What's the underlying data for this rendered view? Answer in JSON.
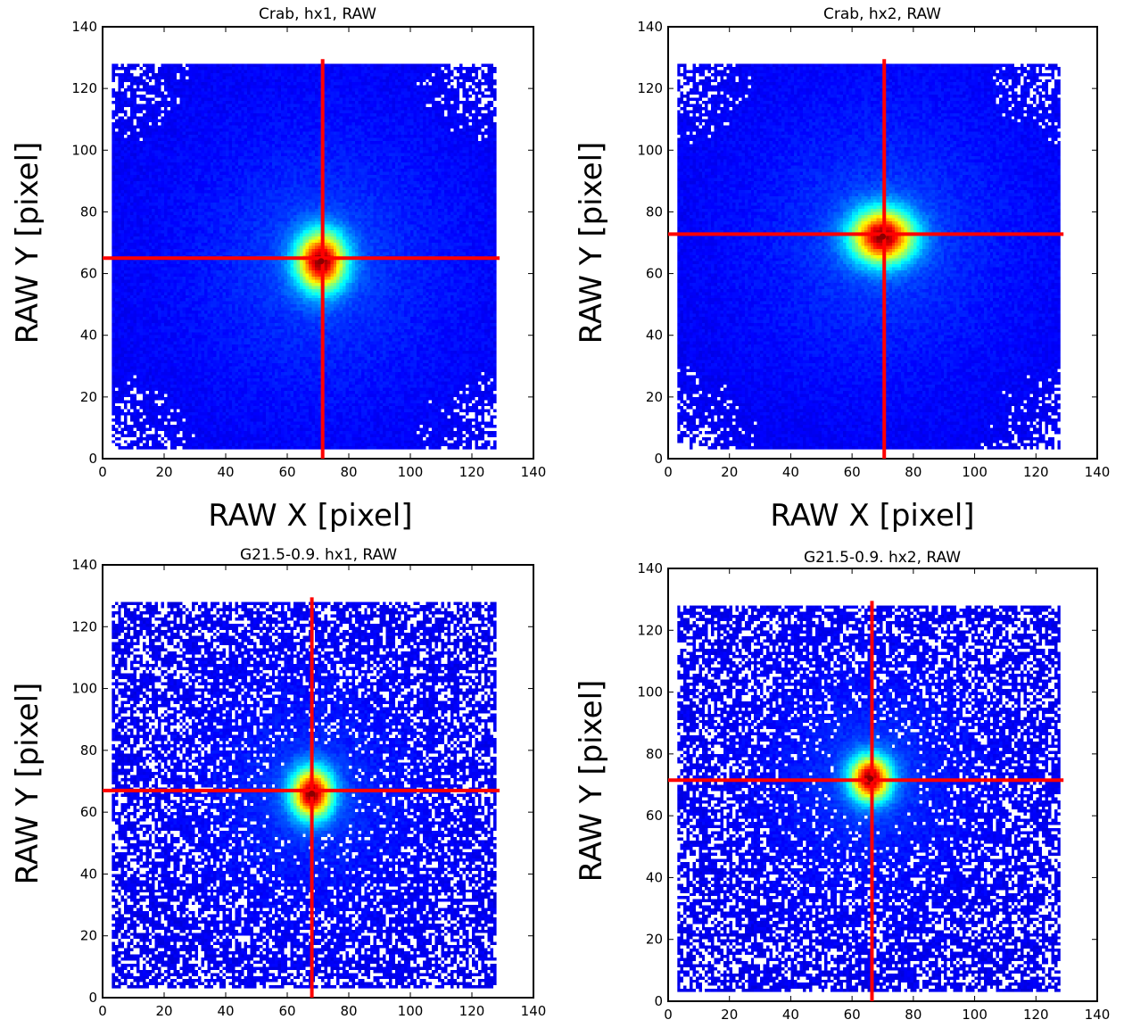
{
  "chart_data": [
    {
      "type": "heatmap",
      "title": "Crab, hx1, RAW",
      "xlabel": "RAW X [pixel]",
      "ylabel": "RAW Y [pixel]",
      "xlim": [
        0,
        140
      ],
      "ylim": [
        0,
        140
      ],
      "xticks": [
        "0",
        "20",
        "40",
        "60",
        "80",
        "100",
        "120",
        "140"
      ],
      "yticks": [
        "0",
        "20",
        "40",
        "60",
        "80",
        "100",
        "120",
        "140"
      ],
      "detector_range": {
        "x": [
          3,
          128
        ],
        "y": [
          3,
          128
        ]
      },
      "peak": {
        "x": 71,
        "y": 64
      },
      "crosshair": {
        "x": 71.5,
        "y": 65
      },
      "spread": [
        5.5,
        6.5
      ],
      "noise_level": "low",
      "grid": false,
      "colors": {
        "background": "#00007f",
        "crosshair": "#ff0000",
        "empty_pixel": "#ffffff"
      }
    },
    {
      "type": "heatmap",
      "title": "Crab, hx2, RAW",
      "xlabel": "RAW X [pixel]",
      "ylabel": "RAW Y [pixel]",
      "xlim": [
        0,
        140
      ],
      "ylim": [
        0,
        140
      ],
      "xticks": [
        "0",
        "20",
        "40",
        "60",
        "80",
        "100",
        "120",
        "140"
      ],
      "yticks": [
        "0",
        "20",
        "40",
        "60",
        "80",
        "100",
        "120",
        "140"
      ],
      "detector_range": {
        "x": [
          3,
          128
        ],
        "y": [
          3,
          128
        ]
      },
      "peak": {
        "x": 70,
        "y": 72
      },
      "crosshair": {
        "x": 70.5,
        "y": 72.8
      },
      "spread": [
        7,
        6
      ],
      "noise_level": "low",
      "grid": false,
      "colors": {
        "background": "#00007f",
        "crosshair": "#ff0000",
        "empty_pixel": "#ffffff"
      }
    },
    {
      "type": "heatmap",
      "title": "G21.5-0.9. hx1, RAW",
      "xlabel": "",
      "ylabel": "RAW Y [pixel]",
      "xlim": [
        0,
        140
      ],
      "ylim": [
        0,
        140
      ],
      "xticks": [
        "0",
        "20",
        "40",
        "60",
        "80",
        "100",
        "120",
        "140"
      ],
      "yticks": [
        "0",
        "20",
        "40",
        "60",
        "80",
        "100",
        "120",
        "140"
      ],
      "detector_range": {
        "x": [
          3,
          128
        ],
        "y": [
          3,
          128
        ]
      },
      "peak": {
        "x": 68,
        "y": 66
      },
      "crosshair": {
        "x": 68,
        "y": 67
      },
      "spread": [
        4.5,
        5.5
      ],
      "noise_level": "high",
      "grid": false,
      "colors": {
        "background": "#00007f",
        "crosshair": "#ff0000",
        "empty_pixel": "#ffffff"
      }
    },
    {
      "type": "heatmap",
      "title": "G21.5-0.9. hx2, RAW",
      "xlabel": "",
      "ylabel": "RAW Y [pixel]",
      "xlim": [
        0,
        140
      ],
      "ylim": [
        0,
        140
      ],
      "xticks": [
        "0",
        "20",
        "40",
        "60",
        "80",
        "100",
        "120",
        "140"
      ],
      "yticks": [
        "0",
        "20",
        "40",
        "60",
        "80",
        "100",
        "120",
        "140"
      ],
      "detector_range": {
        "x": [
          3,
          128
        ],
        "y": [
          3,
          128
        ]
      },
      "peak": {
        "x": 66,
        "y": 72
      },
      "crosshair": {
        "x": 66.5,
        "y": 71.5
      },
      "spread": [
        4.5,
        5
      ],
      "noise_level": "high",
      "grid": false,
      "colors": {
        "background": "#00007f",
        "crosshair": "#ff0000",
        "empty_pixel": "#ffffff"
      }
    }
  ]
}
